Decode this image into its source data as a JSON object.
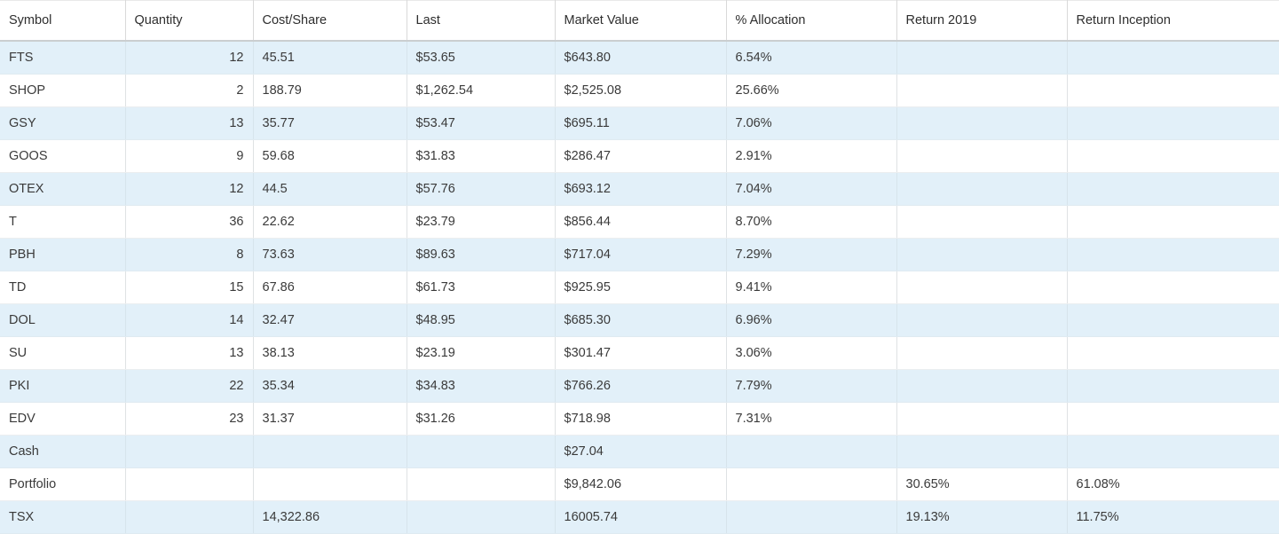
{
  "table": {
    "columns": [
      {
        "key": "symbol",
        "label": "Symbol",
        "align": "left"
      },
      {
        "key": "quantity",
        "label": "Quantity",
        "align": "left",
        "cell_align": "right"
      },
      {
        "key": "cost_share",
        "label": "Cost/Share",
        "align": "left"
      },
      {
        "key": "last",
        "label": "Last",
        "align": "left"
      },
      {
        "key": "market_value",
        "label": "Market Value",
        "align": "left"
      },
      {
        "key": "allocation",
        "label": "% Allocation",
        "align": "left"
      },
      {
        "key": "return_2019",
        "label": "Return 2019",
        "align": "left"
      },
      {
        "key": "return_inception",
        "label": "Return Inception",
        "align": "left"
      }
    ],
    "rows": [
      {
        "symbol": "FTS",
        "quantity": "12",
        "cost_share": "45.51",
        "last": "$53.65",
        "market_value": "$643.80",
        "allocation": "6.54%",
        "return_2019": "",
        "return_inception": ""
      },
      {
        "symbol": "SHOP",
        "quantity": "2",
        "cost_share": "188.79",
        "last": "$1,262.54",
        "market_value": "$2,525.08",
        "allocation": "25.66%",
        "return_2019": "",
        "return_inception": ""
      },
      {
        "symbol": "GSY",
        "quantity": "13",
        "cost_share": "35.77",
        "last": "$53.47",
        "market_value": "$695.11",
        "allocation": "7.06%",
        "return_2019": "",
        "return_inception": ""
      },
      {
        "symbol": "GOOS",
        "quantity": "9",
        "cost_share": "59.68",
        "last": "$31.83",
        "market_value": "$286.47",
        "allocation": "2.91%",
        "return_2019": "",
        "return_inception": ""
      },
      {
        "symbol": "OTEX",
        "quantity": "12",
        "cost_share": "44.5",
        "last": "$57.76",
        "market_value": "$693.12",
        "allocation": "7.04%",
        "return_2019": "",
        "return_inception": ""
      },
      {
        "symbol": "T",
        "quantity": "36",
        "cost_share": "22.62",
        "last": "$23.79",
        "market_value": "$856.44",
        "allocation": "8.70%",
        "return_2019": "",
        "return_inception": ""
      },
      {
        "symbol": "PBH",
        "quantity": "8",
        "cost_share": "73.63",
        "last": "$89.63",
        "market_value": "$717.04",
        "allocation": "7.29%",
        "return_2019": "",
        "return_inception": ""
      },
      {
        "symbol": "TD",
        "quantity": "15",
        "cost_share": "67.86",
        "last": "$61.73",
        "market_value": "$925.95",
        "allocation": "9.41%",
        "return_2019": "",
        "return_inception": ""
      },
      {
        "symbol": "DOL",
        "quantity": "14",
        "cost_share": "32.47",
        "last": "$48.95",
        "market_value": "$685.30",
        "allocation": "6.96%",
        "return_2019": "",
        "return_inception": ""
      },
      {
        "symbol": "SU",
        "quantity": "13",
        "cost_share": "38.13",
        "last": "$23.19",
        "market_value": "$301.47",
        "allocation": "3.06%",
        "return_2019": "",
        "return_inception": ""
      },
      {
        "symbol": "PKI",
        "quantity": "22",
        "cost_share": "35.34",
        "last": "$34.83",
        "market_value": "$766.26",
        "allocation": "7.79%",
        "return_2019": "",
        "return_inception": ""
      },
      {
        "symbol": "EDV",
        "quantity": "23",
        "cost_share": "31.37",
        "last": "$31.26",
        "market_value": "$718.98",
        "allocation": "7.31%",
        "return_2019": "",
        "return_inception": ""
      },
      {
        "symbol": "Cash",
        "quantity": "",
        "cost_share": "",
        "last": "",
        "market_value": "$27.04",
        "allocation": "",
        "return_2019": "",
        "return_inception": ""
      },
      {
        "symbol": "Portfolio",
        "quantity": "",
        "cost_share": "",
        "last": "",
        "market_value": "$9,842.06",
        "allocation": "",
        "return_2019": "30.65%",
        "return_inception": "61.08%"
      },
      {
        "symbol": "TSX",
        "quantity": "",
        "cost_share": "14,322.86",
        "last": "",
        "market_value": "16005.74",
        "allocation": "",
        "return_2019": "19.13%",
        "return_inception": "11.75%"
      }
    ]
  },
  "colors": {
    "row_stripe": "#e2f0f9",
    "header_bottom_border": "#cbced0",
    "grid_line": "#dfe2e4",
    "header_text": "#2e2e2e",
    "body_text": "#3a3a3a"
  }
}
